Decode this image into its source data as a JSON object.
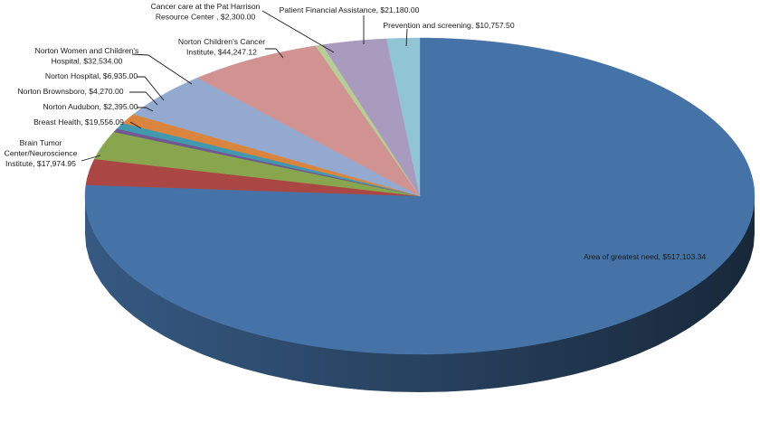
{
  "chart_data": {
    "type": "pie",
    "style": "3d-exploded-none",
    "title": "",
    "slices": [
      {
        "label": "Area of greatest need",
        "value": 517103.34,
        "display": "$517,103.34",
        "color": "#4572A7"
      },
      {
        "label": "Brain Tumor Center/Neuroscience Institute",
        "value": 17974.95,
        "display": "$17,974.95",
        "color": "#AA4643"
      },
      {
        "label": "Breast Health",
        "value": 19556.09,
        "display": "$19,556.09",
        "color": "#89A54E"
      },
      {
        "label": "Norton Audubon",
        "value": 2395.0,
        "display": "$2,395.00",
        "color": "#71588F"
      },
      {
        "label": "Norton Brownsboro",
        "value": 4270.0,
        "display": "$4,270.00",
        "color": "#4198AF"
      },
      {
        "label": "Norton Hospital",
        "value": 6935.0,
        "display": "$6,935.00",
        "color": "#DB843D"
      },
      {
        "label": "Norton Women and Children's Hospital",
        "value": 32534.0,
        "display": "$32,534.00",
        "color": "#93A9CF"
      },
      {
        "label": "Norton Children's Cancer Institute",
        "value": 44247.12,
        "display": "$44,247.12",
        "color": "#D19392"
      },
      {
        "label": "Cancer care at the Pat Harrison Resource Center",
        "value": 2300.0,
        "display": "$2,300.00",
        "color": "#B9CD96"
      },
      {
        "label": "Patient Financial Assistance",
        "value": 21180.0,
        "display": "$21,180.00",
        "color": "#A99BBD"
      },
      {
        "label": "Prevention and screening",
        "value": 10757.5,
        "display": "$10,757.50",
        "color": "#92C5D4"
      }
    ]
  },
  "labels": {
    "area": {
      "lines": [
        "Area of greatest need,  $517,103.34"
      ]
    },
    "brain": {
      "lines": [
        "Brain Tumor",
        "Center/Neuroscience",
        "Institute,  $17,974.95"
      ]
    },
    "breast": {
      "lines": [
        "Breast Health,  $19,556.09"
      ]
    },
    "audubon": {
      "lines": [
        "Norton Audubon,  $2,395.00"
      ]
    },
    "brownsboro": {
      "lines": [
        "Norton Brownsboro,  $4,270.00"
      ]
    },
    "hospital": {
      "lines": [
        "Norton Hospital,  $6,935.00"
      ]
    },
    "women": {
      "lines": [
        "Norton Women and Children's",
        "Hospital,  $32,534.00"
      ]
    },
    "cancer_inst": {
      "lines": [
        "Norton Children's Cancer",
        "Institute,  $44,247.12"
      ]
    },
    "pat": {
      "lines": [
        "Cancer care at the Pat Harrison",
        "Resource Center ,  $2,300.00"
      ]
    },
    "patient": {
      "lines": [
        "Patient Financial Assistance,  $21,180.00"
      ]
    },
    "prevention": {
      "lines": [
        "Prevention and screening,  $10,757.50"
      ]
    }
  }
}
